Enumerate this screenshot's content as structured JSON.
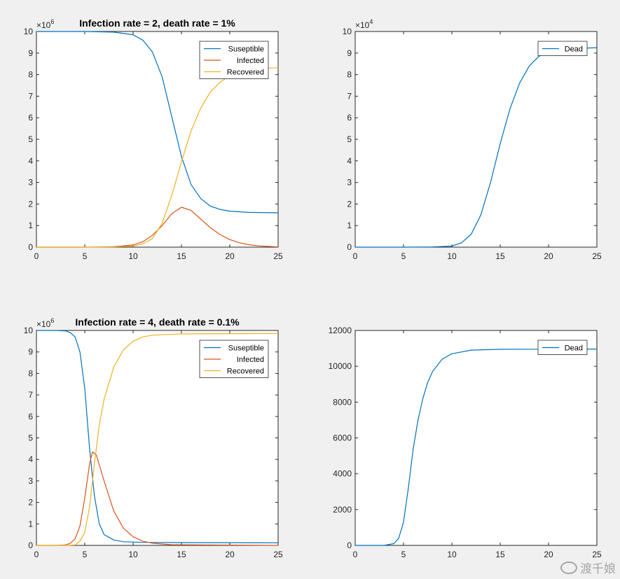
{
  "chart_data": [
    {
      "type": "line",
      "title": "Infection rate = 2, death rate = 1%",
      "xlim": [
        0,
        25
      ],
      "ylim": [
        0,
        10
      ],
      "y_exponent": "6",
      "xticks": [
        "0",
        "5",
        "10",
        "15",
        "20",
        "25"
      ],
      "yticks": [
        "0",
        "1",
        "2",
        "3",
        "4",
        "5",
        "6",
        "7",
        "8",
        "9",
        "10"
      ],
      "legend_position": "top-right",
      "series": [
        {
          "name": "Suseptible",
          "color": "#0072BD",
          "points": [
            [
              0,
              10
            ],
            [
              5,
              10
            ],
            [
              8,
              9.97
            ],
            [
              10,
              9.85
            ],
            [
              11,
              9.6
            ],
            [
              12,
              9.05
            ],
            [
              13,
              7.9
            ],
            [
              14,
              6.05
            ],
            [
              15,
              4.2
            ],
            [
              16,
              2.9
            ],
            [
              17,
              2.25
            ],
            [
              18,
              1.9
            ],
            [
              19,
              1.75
            ],
            [
              20,
              1.67
            ],
            [
              22,
              1.61
            ],
            [
              25,
              1.59
            ]
          ]
        },
        {
          "name": "Infected",
          "color": "#D95319",
          "points": [
            [
              0,
              0
            ],
            [
              5,
              0
            ],
            [
              8,
              0.02
            ],
            [
              10,
              0.1
            ],
            [
              11,
              0.25
            ],
            [
              12,
              0.55
            ],
            [
              13,
              1.0
            ],
            [
              14,
              1.55
            ],
            [
              15,
              1.85
            ],
            [
              16,
              1.7
            ],
            [
              17,
              1.3
            ],
            [
              18,
              0.9
            ],
            [
              19,
              0.58
            ],
            [
              20,
              0.35
            ],
            [
              21,
              0.2
            ],
            [
              22,
              0.11
            ],
            [
              23,
              0.06
            ],
            [
              25,
              0.01
            ]
          ]
        },
        {
          "name": "Recovered",
          "color": "#EDB120",
          "points": [
            [
              0,
              0
            ],
            [
              5,
              0
            ],
            [
              8,
              0.01
            ],
            [
              10,
              0.05
            ],
            [
              11,
              0.15
            ],
            [
              12,
              0.4
            ],
            [
              13,
              1.1
            ],
            [
              14,
              2.4
            ],
            [
              15,
              3.95
            ],
            [
              16,
              5.4
            ],
            [
              17,
              6.45
            ],
            [
              18,
              7.2
            ],
            [
              19,
              7.65
            ],
            [
              20,
              7.95
            ],
            [
              21,
              8.12
            ],
            [
              22,
              8.22
            ],
            [
              23,
              8.28
            ],
            [
              25,
              8.32
            ]
          ]
        }
      ]
    },
    {
      "type": "line",
      "title": "",
      "xlim": [
        0,
        25
      ],
      "ylim": [
        0,
        10
      ],
      "y_exponent": "4",
      "xticks": [
        "0",
        "5",
        "10",
        "15",
        "20",
        "25"
      ],
      "yticks": [
        "0",
        "1",
        "2",
        "3",
        "4",
        "5",
        "6",
        "7",
        "8",
        "9",
        "10"
      ],
      "legend_position": "top-right",
      "series": [
        {
          "name": "Dead",
          "color": "#0072BD",
          "points": [
            [
              0,
              0
            ],
            [
              5,
              0
            ],
            [
              8,
              0.01
            ],
            [
              10,
              0.05
            ],
            [
              11,
              0.2
            ],
            [
              12,
              0.6
            ],
            [
              13,
              1.5
            ],
            [
              14,
              3.0
            ],
            [
              15,
              4.8
            ],
            [
              16,
              6.4
            ],
            [
              17,
              7.6
            ],
            [
              18,
              8.4
            ],
            [
              19,
              8.85
            ],
            [
              20,
              9.05
            ],
            [
              21,
              9.15
            ],
            [
              22,
              9.2
            ],
            [
              25,
              9.25
            ]
          ]
        }
      ]
    },
    {
      "type": "line",
      "title": "Infection rate = 4, death rate = 0.1%",
      "xlim": [
        0,
        25
      ],
      "ylim": [
        0,
        10
      ],
      "y_exponent": "6",
      "xticks": [
        "0",
        "5",
        "10",
        "15",
        "20",
        "25"
      ],
      "yticks": [
        "0",
        "1",
        "2",
        "3",
        "4",
        "5",
        "6",
        "7",
        "8",
        "9",
        "10"
      ],
      "legend_position": "top-right",
      "series": [
        {
          "name": "Suseptible",
          "color": "#0072BD",
          "points": [
            [
              0,
              10
            ],
            [
              2,
              10
            ],
            [
              3,
              9.98
            ],
            [
              3.5,
              9.9
            ],
            [
              4,
              9.7
            ],
            [
              4.5,
              9.0
            ],
            [
              5,
              7.3
            ],
            [
              5.5,
              4.5
            ],
            [
              6,
              2.3
            ],
            [
              6.5,
              1.0
            ],
            [
              7,
              0.5
            ],
            [
              8,
              0.25
            ],
            [
              9,
              0.17
            ],
            [
              11,
              0.14
            ],
            [
              15,
              0.13
            ],
            [
              25,
              0.12
            ]
          ]
        },
        {
          "name": "Infected",
          "color": "#D95319",
          "points": [
            [
              0,
              0
            ],
            [
              2,
              0
            ],
            [
              3,
              0.02
            ],
            [
              3.5,
              0.1
            ],
            [
              4,
              0.3
            ],
            [
              4.5,
              0.9
            ],
            [
              5,
              2.2
            ],
            [
              5.5,
              3.8
            ],
            [
              5.8,
              4.35
            ],
            [
              6.2,
              4.2
            ],
            [
              7,
              3.0
            ],
            [
              8,
              1.6
            ],
            [
              9,
              0.8
            ],
            [
              10,
              0.4
            ],
            [
              11,
              0.2
            ],
            [
              12,
              0.1
            ],
            [
              14,
              0.03
            ],
            [
              25,
              0
            ]
          ]
        },
        {
          "name": "Recovered",
          "color": "#EDB120",
          "points": [
            [
              0,
              0
            ],
            [
              3,
              0
            ],
            [
              4,
              0.02
            ],
            [
              4.5,
              0.2
            ],
            [
              5,
              0.6
            ],
            [
              5.5,
              1.8
            ],
            [
              6,
              3.8
            ],
            [
              6.5,
              5.6
            ],
            [
              7,
              6.8
            ],
            [
              8,
              8.3
            ],
            [
              9,
              9.1
            ],
            [
              10,
              9.5
            ],
            [
              11,
              9.7
            ],
            [
              12,
              9.78
            ],
            [
              15,
              9.84
            ],
            [
              25,
              9.86
            ]
          ]
        }
      ]
    },
    {
      "type": "line",
      "title": "",
      "xlim": [
        0,
        25
      ],
      "ylim": [
        0,
        12000
      ],
      "y_exponent": "",
      "xticks": [
        "0",
        "5",
        "10",
        "15",
        "20",
        "25"
      ],
      "yticks": [
        "0",
        "2000",
        "4000",
        "6000",
        "8000",
        "10000",
        "12000"
      ],
      "legend_position": "top-right",
      "series": [
        {
          "name": "Dead",
          "color": "#0072BD",
          "points": [
            [
              0,
              0
            ],
            [
              3,
              0
            ],
            [
              4,
              100
            ],
            [
              4.5,
              400
            ],
            [
              5,
              1300
            ],
            [
              5.5,
              3200
            ],
            [
              6,
              5400
            ],
            [
              6.5,
              7000
            ],
            [
              7,
              8200
            ],
            [
              7.5,
              9100
            ],
            [
              8,
              9700
            ],
            [
              9,
              10400
            ],
            [
              10,
              10700
            ],
            [
              12,
              10900
            ],
            [
              15,
              10950
            ],
            [
              25,
              10960
            ]
          ]
        }
      ]
    }
  ],
  "watermark": "渡千娘"
}
